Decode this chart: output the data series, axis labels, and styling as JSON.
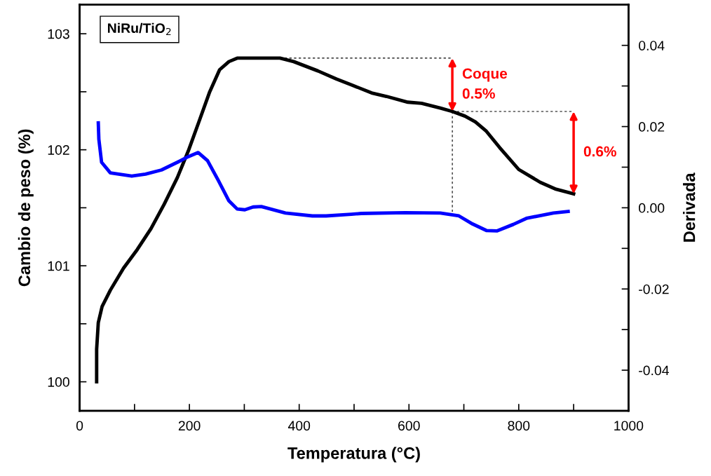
{
  "chart_data": {
    "type": "line",
    "xlabel": "Temperatura (°C)",
    "ylabel": "Cambio de peso (%)",
    "y2label": "Derivada",
    "xlim": [
      0,
      1000
    ],
    "xticks": [
      0,
      {
        "value": 100,
        "label": null
      },
      200,
      {
        "value": 300,
        "label": null
      },
      400,
      {
        "value": 500,
        "label": null
      },
      600,
      {
        "value": 700,
        "label": null
      },
      800,
      {
        "value": 900,
        "label": null
      },
      1000
    ],
    "ylim": [
      99.75,
      103.25
    ],
    "yticks": [
      100,
      {
        "value": 100.5,
        "label": null
      },
      101,
      {
        "value": 101.5,
        "label": null
      },
      102,
      {
        "value": 102.5,
        "label": null
      },
      103
    ],
    "y2lim": [
      -0.05,
      0.05
    ],
    "y2ticks": [
      {
        "value": -0.04,
        "label": "-0.04"
      },
      {
        "value": -0.03,
        "label": null
      },
      {
        "value": -0.02,
        "label": "-0.02"
      },
      {
        "value": -0.01,
        "label": null
      },
      {
        "value": 0,
        "label": "0.00"
      },
      {
        "value": 0.01,
        "label": null
      },
      {
        "value": 0.02,
        "label": "0.02"
      },
      {
        "value": 0.03,
        "label": null
      },
      {
        "value": 0.04,
        "label": "0.04"
      }
    ],
    "grid": false,
    "marker": "none",
    "line_style": "solid",
    "series": [
      {
        "color": "#000000",
        "x": [
          31,
          31,
          34,
          41,
          56,
          80,
          105,
          130,
          154,
          178,
          198,
          218,
          237,
          255,
          272,
          287,
          365,
          390,
          434,
          468,
          495,
          532,
          559,
          598,
          623,
          657,
          679,
          702,
          721,
          741,
          765,
          800,
          839,
          868,
          900
        ],
        "values": [
          100.0,
          100.28,
          100.51,
          100.65,
          100.79,
          100.98,
          101.14,
          101.32,
          101.53,
          101.76,
          101.99,
          102.25,
          102.5,
          102.69,
          102.76,
          102.79,
          102.79,
          102.76,
          102.68,
          102.61,
          102.56,
          102.49,
          102.46,
          102.41,
          102.4,
          102.36,
          102.33,
          102.29,
          102.24,
          102.16,
          102.02,
          101.83,
          101.72,
          101.66,
          101.62
        ]
      },
      {
        "color": "#0000ff",
        "axis": "y2",
        "x": [
          34,
          35,
          40,
          56,
          95,
          120,
          149,
          178,
          198,
          216,
          233,
          252,
          272,
          287,
          301,
          316,
          331,
          375,
          424,
          449,
          495,
          513,
          593,
          657,
          691,
          716,
          741,
          760,
          790,
          814,
          863,
          890
        ],
        "values": [
          0.0209,
          0.0169,
          0.0112,
          0.0086,
          0.0078,
          0.0083,
          0.0093,
          0.0112,
          0.0126,
          0.0136,
          0.0116,
          0.0069,
          0.0017,
          -0.0003,
          -0.0005,
          0.0002,
          0.0003,
          -0.0013,
          -0.002,
          -0.002,
          -0.0016,
          -0.0014,
          -0.0012,
          -0.0013,
          -0.002,
          -0.004,
          -0.0056,
          -0.0057,
          -0.0041,
          -0.0026,
          -0.0013,
          -0.0009
        ]
      }
    ],
    "annotations": [
      "NiRu/TiO$_{2}$",
      {
        "text": "Coque\n0.5%",
        "x": 679,
        "y": 102.33
      },
      {
        "text": "0.6%",
        "x": 900,
        "y": 101.62
      }
    ]
  }
}
